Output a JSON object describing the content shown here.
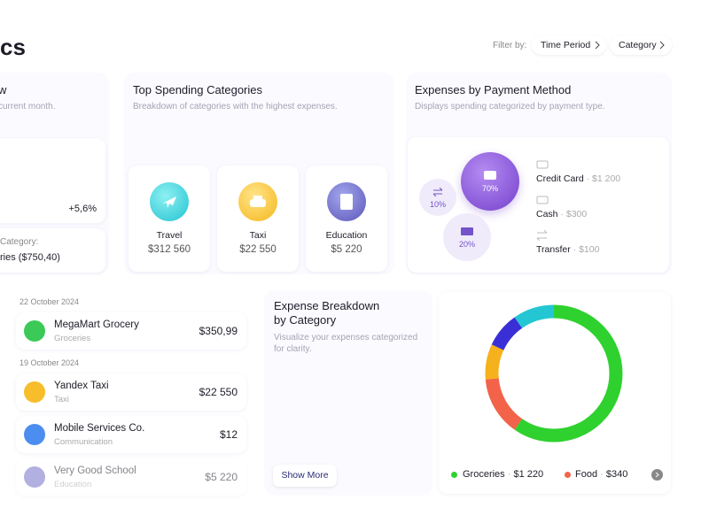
{
  "header": {
    "title": "cs",
    "filter_label": "Filter by:",
    "filters": [
      "Time Period",
      "Category"
    ]
  },
  "overview_card": {
    "title": "w",
    "subtitle": "current month.",
    "change": "+5,6%",
    "category_label": "Category:",
    "category_value": "ries ($750,40)"
  },
  "top_spending": {
    "title": "Top Spending Categories",
    "subtitle": "Breakdown of categories with the highest expenses.",
    "items": [
      {
        "name": "Travel",
        "amount": "$312 560"
      },
      {
        "name": "Taxi",
        "amount": "$22 550"
      },
      {
        "name": "Education",
        "amount": "$5 220"
      }
    ]
  },
  "payment_method": {
    "title": "Expenses by Payment Method",
    "subtitle": "Displays spending categorized by payment type.",
    "bubbles": [
      "70%",
      "10%",
      "20%"
    ],
    "separator": "·",
    "methods": [
      {
        "name": "Credit Card",
        "amount": "$1 200"
      },
      {
        "name": "Cash",
        "amount": "$300"
      },
      {
        "name": "Transfer",
        "amount": "$100"
      }
    ]
  },
  "transactions": {
    "groups": [
      {
        "date": "22 October 2024",
        "items": [
          {
            "name": "MegaMart Grocery",
            "category": "Groceries",
            "amount": "$350,99"
          }
        ]
      },
      {
        "date": "19 October 2024",
        "items": [
          {
            "name": "Yandex Taxi",
            "category": "Taxi",
            "amount": "$22 550"
          },
          {
            "name": "Mobile Services Co.",
            "category": "Communication",
            "amount": "$12"
          },
          {
            "name": "Very Good School",
            "category": "Education",
            "amount": "$5 220"
          }
        ]
      }
    ]
  },
  "breakdown": {
    "title_lines": [
      "Expense Breakdown",
      "by Category"
    ],
    "subtitle": "Visualize your expenses categorized for clarity.",
    "button": "Show More"
  },
  "donut_legend": {
    "separator": "·",
    "items": [
      {
        "name": "Groceries",
        "amount": "$1 220"
      },
      {
        "name": "Food",
        "amount": "$340"
      }
    ]
  }
}
